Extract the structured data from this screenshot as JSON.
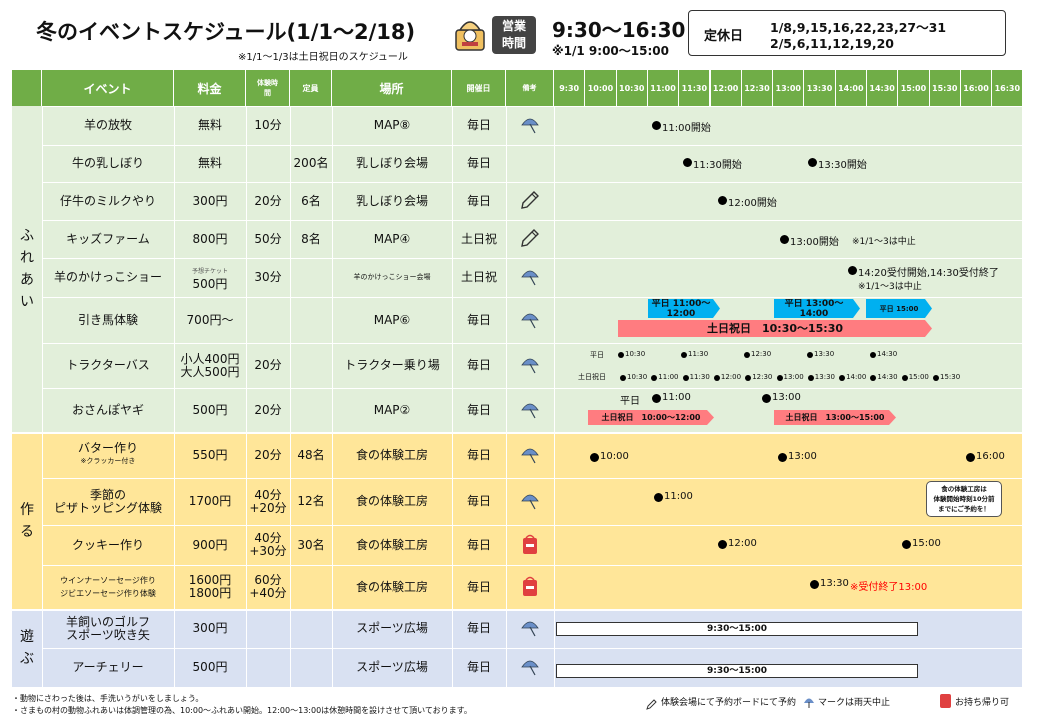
{
  "header": {
    "title": "冬のイベントスケジュール(1/1～2/18)",
    "subtitle": "※1/1～1/3は土日祝日のスケジュール",
    "hours_badge": [
      "営業",
      "時間"
    ],
    "hours": "9:30～16:30",
    "hours_note": "※1/1 9:00～15:00",
    "closed_label": "定休日",
    "closed_days": [
      "1/8,9,15,16,22,23,27～31",
      "2/5,6,11,12,19,20"
    ]
  },
  "columns": {
    "event": "イベント",
    "fee": "料金",
    "duration": "体験時間",
    "capacity": "定員",
    "place": "場所",
    "days": "開催日",
    "note": "備考"
  },
  "time_slots": [
    "9:30",
    "10:00",
    "10:30",
    "11:00",
    "11:30",
    "12:00",
    "12:30",
    "13:00",
    "13:30",
    "14:00",
    "14:30",
    "15:00",
    "15:30",
    "16:00",
    "16:30"
  ],
  "groups": [
    {
      "label": "ふれあい"
    },
    {
      "label": "作る"
    },
    {
      "label": "遊ぶ"
    }
  ],
  "rows": [
    {
      "event": [
        "羊の放牧"
      ],
      "fee": [
        "無料"
      ],
      "duration": [
        "10分"
      ],
      "capacity": "",
      "place": "MAP⑧",
      "days": "毎日",
      "note_icon": "umbrella-icon"
    },
    {
      "event": [
        "牛の乳しぼり"
      ],
      "fee": [
        "無料"
      ],
      "duration": [],
      "capacity": "200名",
      "place": "乳しぼり会場",
      "days": "毎日",
      "note_icon": ""
    },
    {
      "event": [
        "仔牛のミルクやり"
      ],
      "fee": [
        "300円"
      ],
      "duration": [
        "20分"
      ],
      "capacity": "6名",
      "place": "乳しぼり会場",
      "days": "毎日",
      "note_icon": "pencil-icon"
    },
    {
      "event": [
        "キッズファーム"
      ],
      "fee": [
        "800円"
      ],
      "duration": [
        "50分"
      ],
      "capacity": "8名",
      "place": "MAP④",
      "days": "土日祝",
      "note_icon": "pencil-icon"
    },
    {
      "event": [
        "羊のかけっこショー"
      ],
      "fee_small": "予想チケット",
      "fee": [
        "500円"
      ],
      "duration": [
        "30分"
      ],
      "capacity": "",
      "place_small": "羊のかけっこショー会場",
      "place": "",
      "days": "土日祝",
      "note_icon": "umbrella-icon"
    },
    {
      "event": [
        "引き馬体験"
      ],
      "fee": [
        "700円～"
      ],
      "duration": [],
      "capacity": "",
      "place": "MAP⑥",
      "days": "毎日",
      "note_icon": "umbrella-icon"
    },
    {
      "event": [
        "トラクターバス"
      ],
      "fee": [
        "小人400円",
        "大人500円"
      ],
      "duration": [
        "20分"
      ],
      "capacity": "",
      "place": "トラクター乗り場",
      "days": "毎日",
      "note_icon": "umbrella-icon"
    },
    {
      "event": [
        "おさんぽヤギ"
      ],
      "fee": [
        "500円"
      ],
      "duration": [
        "20分"
      ],
      "capacity": "",
      "place": "MAP②",
      "days": "毎日",
      "note_icon": "umbrella-icon"
    },
    {
      "event": [
        "バター作り"
      ],
      "event_small": "※クラッカー付き",
      "fee": [
        "550円"
      ],
      "duration": [
        "20分"
      ],
      "capacity": "48名",
      "place": "食の体験工房",
      "days": "毎日",
      "note_icon": "umbrella-icon"
    },
    {
      "event": [
        "季節の",
        "ピザトッピング体験"
      ],
      "fee": [
        "1700円"
      ],
      "duration": [
        "40分",
        "+20分"
      ],
      "capacity": "12名",
      "place": "食の体験工房",
      "days": "毎日",
      "note_icon": "umbrella-icon"
    },
    {
      "event": [
        "クッキー作り"
      ],
      "fee": [
        "900円"
      ],
      "duration": [
        "40分",
        "+30分"
      ],
      "capacity": "30名",
      "place": "食の体験工房",
      "days": "毎日",
      "note_icon": "takeout-icon"
    },
    {
      "event_small2": [
        "ウインナーソーセージ作り",
        "ジビエソーセージ作り体験"
      ],
      "event": [],
      "fee": [
        "1600円",
        "1800円"
      ],
      "duration": [
        "60分",
        "+40分"
      ],
      "capacity": "",
      "place": "食の体験工房",
      "days": "毎日",
      "note_icon": "takeout-icon"
    },
    {
      "event": [
        "羊飼いのゴルフ",
        "スポーツ吹き矢"
      ],
      "fee": [
        "300円"
      ],
      "duration": [],
      "capacity": "",
      "place": "スポーツ広場",
      "days": "毎日",
      "note_icon": "umbrella-icon"
    },
    {
      "event": [
        "アーチェリー"
      ],
      "fee": [
        "500円"
      ],
      "duration": [],
      "capacity": "",
      "place": "スポーツ広場",
      "days": "毎日",
      "note_icon": "umbrella-icon"
    }
  ],
  "timeline": {
    "sheep_graze": "11:00開始",
    "milking_1": "11:30開始",
    "milking_2": "13:30開始",
    "calf_feed": "12:00開始",
    "kids_farm": "13:00開始",
    "kids_farm_note": "※1/1～3は中止",
    "sheep_race": "14:20受付開始,14:30受付終了",
    "sheep_race_note": "※1/1～3は中止",
    "horse_weekday_1": "平日 11:00～12:00",
    "horse_weekday_2": "平日 13:00～14:00",
    "horse_weekday_3": "平日 15:00",
    "horse_weekend": "土日祝日　10:30～15:30",
    "tractor_weekday_label": "平日",
    "tractor_weekday_times": [
      "10:30",
      "11:30",
      "12:30",
      "13:30",
      "14:30"
    ],
    "tractor_weekend_label": "土日祝日",
    "tractor_weekend_times": [
      "10:30",
      "11:00",
      "11:30",
      "12:00",
      "12:30",
      "13:00",
      "13:30",
      "14:00",
      "14:30",
      "15:00",
      "15:30"
    ],
    "goat_weekday_label": "平日",
    "goat_weekday_1": "11:00",
    "goat_weekday_2": "13:00",
    "goat_weekend_1": "土日祝日　10:00～12:00",
    "goat_weekend_2": "土日祝日　13:00～15:00",
    "butter": [
      "10:00",
      "13:00",
      "16:00"
    ],
    "pizza": "11:00",
    "pizza_note": [
      "食の体験工房は",
      "体験開始時刻10分前",
      "までにご予約を！"
    ],
    "cookie": [
      "12:00",
      "15:00"
    ],
    "sausage": "13:30",
    "sausage_note": "※受付終了13:00",
    "golf": "9:30～15:00",
    "archery": "9:30～15:00"
  },
  "footer": {
    "note1": "・動物にさわった後は、手洗いうがいをしましょう。",
    "note2": "・さまもの村の動物ふれあいは体調管理の為、10:00～ふれあい開始。12:00～13:00は休憩時間を設けさせて頂いております。",
    "legend_reserve": "体験会場にて予約ボードにて予約",
    "legend_rain": "マークは雨天中止",
    "legend_takeout": "お持ち帰り可"
  },
  "colors": {
    "header_green": "#70ad47",
    "green_bg": "#e2efda",
    "yellow_bg": "#ffe699",
    "blue_bg": "#d9e1f2",
    "blue_bar": "#00b0f0",
    "pink_bar": "#ff7c80",
    "red_text": "#ff0000"
  }
}
